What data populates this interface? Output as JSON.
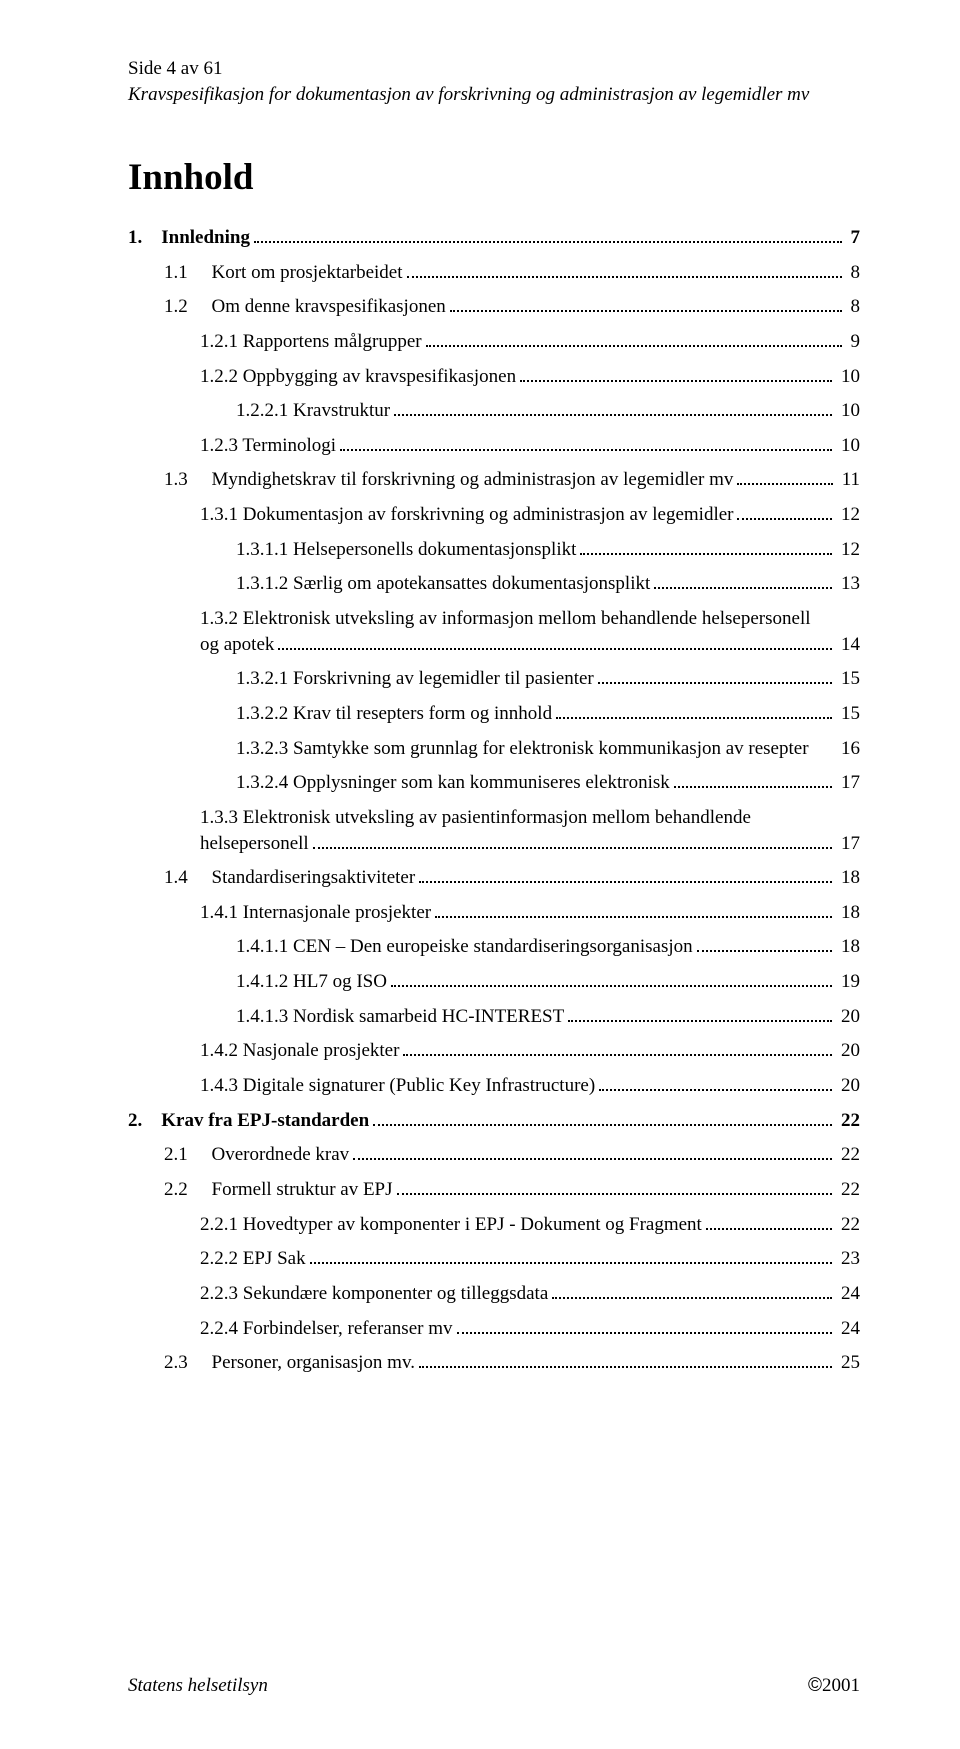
{
  "header": {
    "line1": "Side 4 av 61",
    "line2": "Kravspesifikasjon for dokumentasjon av forskrivning og administrasjon av legemidler mv"
  },
  "title": "Innhold",
  "toc": [
    {
      "label": "1.    Innledning",
      "page": "7",
      "indent": 0,
      "bold": true
    },
    {
      "label": "1.1     Kort om prosjektarbeidet",
      "page": "8",
      "indent": 1
    },
    {
      "label": "1.2     Om denne kravspesifikasjonen",
      "page": "8",
      "indent": 1
    },
    {
      "label": "1.2.1 Rapportens målgrupper",
      "page": "9",
      "indent": 2
    },
    {
      "label": "1.2.2 Oppbygging av kravspesifikasjonen",
      "page": "10",
      "indent": 2
    },
    {
      "label": "1.2.2.1 Kravstruktur",
      "page": "10",
      "indent": 3
    },
    {
      "label": "1.2.3 Terminologi",
      "page": "10",
      "indent": 2
    },
    {
      "label": "1.3     Myndighetskrav til forskrivning og administrasjon av legemidler mv",
      "page": "11",
      "indent": 1
    },
    {
      "label": "1.3.1 Dokumentasjon av forskrivning og administrasjon av legemidler",
      "page": "12",
      "indent": 2
    },
    {
      "label": "1.3.1.1 Helsepersonells dokumentasjonsplikt",
      "page": "12",
      "indent": 3
    },
    {
      "label": "1.3.1.2 Særlig om apotekansattes dokumentasjonsplikt",
      "page": "13",
      "indent": 3
    },
    {
      "label": "1.3.2 Elektronisk utveksling av informasjon mellom behandlende helsepersonell",
      "labelCont": "og apotek",
      "page": "14",
      "indent": 2,
      "multiline": true
    },
    {
      "label": "1.3.2.1 Forskrivning av legemidler til pasienter",
      "page": "15",
      "indent": 3
    },
    {
      "label": "1.3.2.2 Krav til resepters form og innhold",
      "page": "15",
      "indent": 3
    },
    {
      "label": "1.3.2.3 Samtykke som grunnlag for elektronisk kommunikasjon av resepter",
      "page": "16",
      "indent": 3,
      "nodots": true
    },
    {
      "label": "1.3.2.4 Opplysninger som kan kommuniseres elektronisk",
      "page": "17",
      "indent": 3
    },
    {
      "label": "1.3.3 Elektronisk utveksling av pasientinformasjon mellom behandlende",
      "labelCont": "helsepersonell",
      "page": "17",
      "indent": 2,
      "multiline": true
    },
    {
      "label": "1.4     Standardiseringsaktiviteter",
      "page": "18",
      "indent": 1
    },
    {
      "label": "1.4.1 Internasjonale prosjekter",
      "page": "18",
      "indent": 2
    },
    {
      "label": "1.4.1.1 CEN – Den europeiske standardiseringsorganisasjon",
      "page": "18",
      "indent": 3
    },
    {
      "label": "1.4.1.2 HL7 og ISO",
      "page": "19",
      "indent": 3
    },
    {
      "label": "1.4.1.3 Nordisk samarbeid HC-INTEREST",
      "page": "20",
      "indent": 3
    },
    {
      "label": "1.4.2 Nasjonale prosjekter",
      "page": "20",
      "indent": 2
    },
    {
      "label": "1.4.3 Digitale signaturer (Public Key Infrastructure)",
      "page": "20",
      "indent": 2
    },
    {
      "label": "2.    Krav fra EPJ-standarden",
      "page": "22",
      "indent": 0,
      "bold": true
    },
    {
      "label": "2.1     Overordnede krav",
      "page": "22",
      "indent": 1
    },
    {
      "label": "2.2     Formell struktur av EPJ",
      "page": "22",
      "indent": 1
    },
    {
      "label": "2.2.1 Hovedtyper av komponenter i EPJ - Dokument og Fragment",
      "page": "22",
      "indent": 2
    },
    {
      "label": "2.2.2 EPJ Sak",
      "page": "23",
      "indent": 2
    },
    {
      "label": "2.2.3 Sekundære komponenter og tilleggsdata",
      "page": "24",
      "indent": 2
    },
    {
      "label": "2.2.4 Forbindelser, referanser mv",
      "page": "24",
      "indent": 2
    },
    {
      "label": "2.3     Personer, organisasjon mv.",
      "page": "25",
      "indent": 1
    }
  ],
  "footer": {
    "left": "Statens helsetilsyn",
    "rightSymbol": "©",
    "rightYear": "2001"
  }
}
